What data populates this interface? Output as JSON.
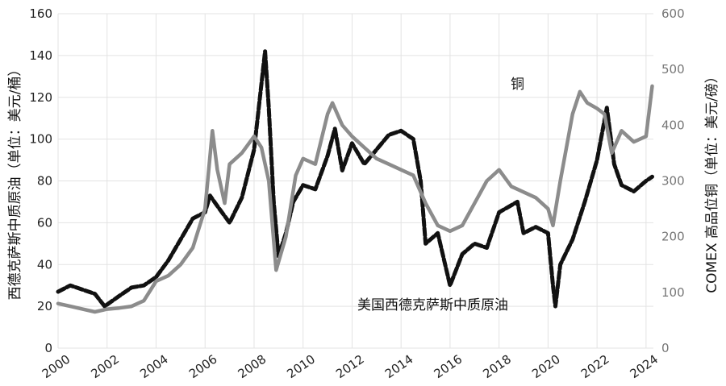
{
  "chart_data": {
    "type": "line",
    "title": "",
    "xlim": [
      2000,
      2024.3
    ],
    "x_ticks": [
      "2000",
      "2002",
      "2004",
      "2006",
      "2008",
      "2010",
      "2012",
      "2014",
      "2016",
      "2018",
      "2020",
      "2022",
      "2024"
    ],
    "y_left": {
      "label": "西德克萨斯中质原油（单位：美元/桶）",
      "range": [
        0,
        160
      ],
      "ticks": [
        "0",
        "20",
        "40",
        "60",
        "80",
        "100",
        "120",
        "140",
        "160"
      ]
    },
    "y_right": {
      "label": "COMEX 高品位铜（单位：美元/磅）",
      "range": [
        0,
        600
      ],
      "ticks": [
        "0",
        "100",
        "200",
        "300",
        "400",
        "500",
        "600"
      ]
    },
    "grid": true,
    "colors": {
      "wti": "#111111",
      "copper": "#8c8c8c",
      "grid": "#e3e3e3"
    },
    "series": [
      {
        "name": "美国西德克萨斯中质原油",
        "axis": "left",
        "style": "dashed",
        "x": [
          2000,
          2000.5,
          2001,
          2001.5,
          2001.9,
          2002.5,
          2003,
          2003.5,
          2004,
          2004.5,
          2005,
          2005.5,
          2006,
          2006.2,
          2006.5,
          2007,
          2007.5,
          2008,
          2008.45,
          2008.6,
          2008.8,
          2009,
          2009.3,
          2009.6,
          2010,
          2010.5,
          2011,
          2011.3,
          2011.6,
          2012,
          2012.5,
          2013,
          2013.5,
          2014,
          2014.5,
          2014.8,
          2015,
          2015.5,
          2016,
          2016.5,
          2017,
          2017.5,
          2018,
          2018.75,
          2019,
          2019.5,
          2020,
          2020.2,
          2020.3,
          2020.5,
          2021,
          2021.5,
          2022,
          2022.4,
          2022.7,
          2023,
          2023.5,
          2024,
          2024.25
        ],
        "y": [
          27,
          30,
          28,
          26,
          20,
          25,
          29,
          30,
          34,
          42,
          52,
          62,
          65,
          73,
          68,
          60,
          72,
          95,
          142,
          115,
          70,
          44,
          55,
          70,
          78,
          76,
          92,
          105,
          85,
          98,
          88,
          95,
          102,
          104,
          100,
          80,
          50,
          55,
          30,
          45,
          50,
          48,
          65,
          70,
          55,
          58,
          55,
          30,
          20,
          40,
          52,
          70,
          90,
          115,
          88,
          78,
          75,
          80,
          82
        ]
      },
      {
        "name": "铜",
        "axis": "right",
        "style": "solid",
        "x": [
          2000,
          2000.5,
          2001,
          2001.5,
          2002,
          2002.5,
          2003,
          2003.5,
          2004,
          2004.5,
          2005,
          2005.5,
          2006,
          2006.3,
          2006.5,
          2006.8,
          2007,
          2007.5,
          2008,
          2008.3,
          2008.6,
          2008.9,
          2009.3,
          2009.7,
          2010,
          2010.5,
          2011,
          2011.2,
          2011.6,
          2012,
          2012.5,
          2013,
          2013.5,
          2014,
          2014.5,
          2015,
          2015.5,
          2016,
          2016.5,
          2017,
          2017.5,
          2018,
          2018.5,
          2019,
          2019.5,
          2020,
          2020.2,
          2020.5,
          2021,
          2021.3,
          2021.6,
          2022,
          2022.3,
          2022.6,
          2023,
          2023.5,
          2024,
          2024.25
        ],
        "y": [
          80,
          75,
          70,
          65,
          70,
          72,
          75,
          85,
          120,
          130,
          150,
          180,
          250,
          390,
          320,
          260,
          330,
          350,
          380,
          360,
          300,
          140,
          200,
          310,
          340,
          330,
          420,
          440,
          400,
          380,
          360,
          340,
          330,
          320,
          310,
          260,
          220,
          210,
          220,
          260,
          300,
          320,
          290,
          280,
          270,
          250,
          220,
          300,
          420,
          460,
          440,
          430,
          420,
          350,
          390,
          370,
          380,
          470
        ]
      }
    ],
    "annotations": [
      {
        "text": "铜",
        "series": "铜"
      },
      {
        "text": "美国西德克萨斯中质原油",
        "series": "美国西德克萨斯中质原油"
      }
    ]
  }
}
